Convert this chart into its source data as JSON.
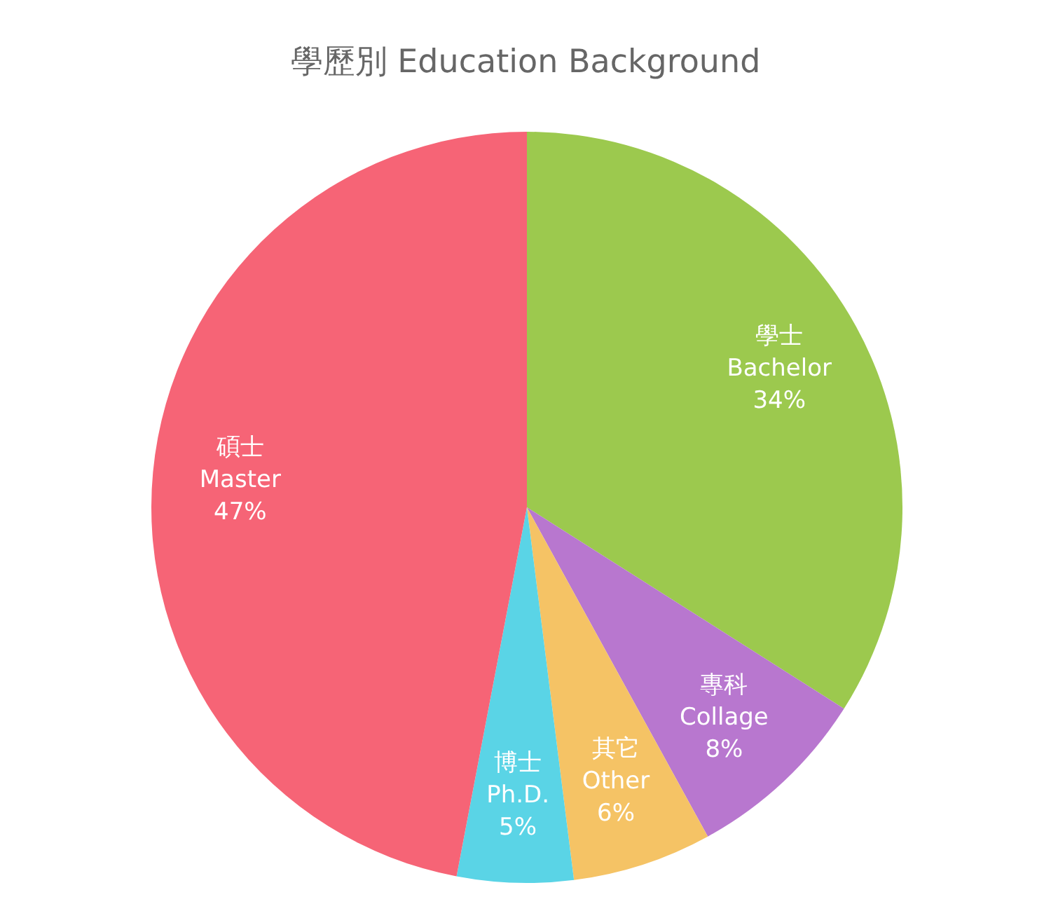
{
  "chart_data": {
    "type": "pie",
    "title": "學歷別 Education Background",
    "categories": [
      "學士\nBachelor",
      "專科\nCollage",
      "其它\nOther",
      "博士\nPh.D.",
      "碩士\nMaster"
    ],
    "values": [
      34,
      8,
      6,
      5,
      47
    ],
    "colors": [
      "#9cc94e",
      "#b877cf",
      "#f5c365",
      "#5ad4e6",
      "#f66476"
    ],
    "value_labels": [
      "34%",
      "8%",
      "6%",
      "5%",
      "47%"
    ]
  }
}
